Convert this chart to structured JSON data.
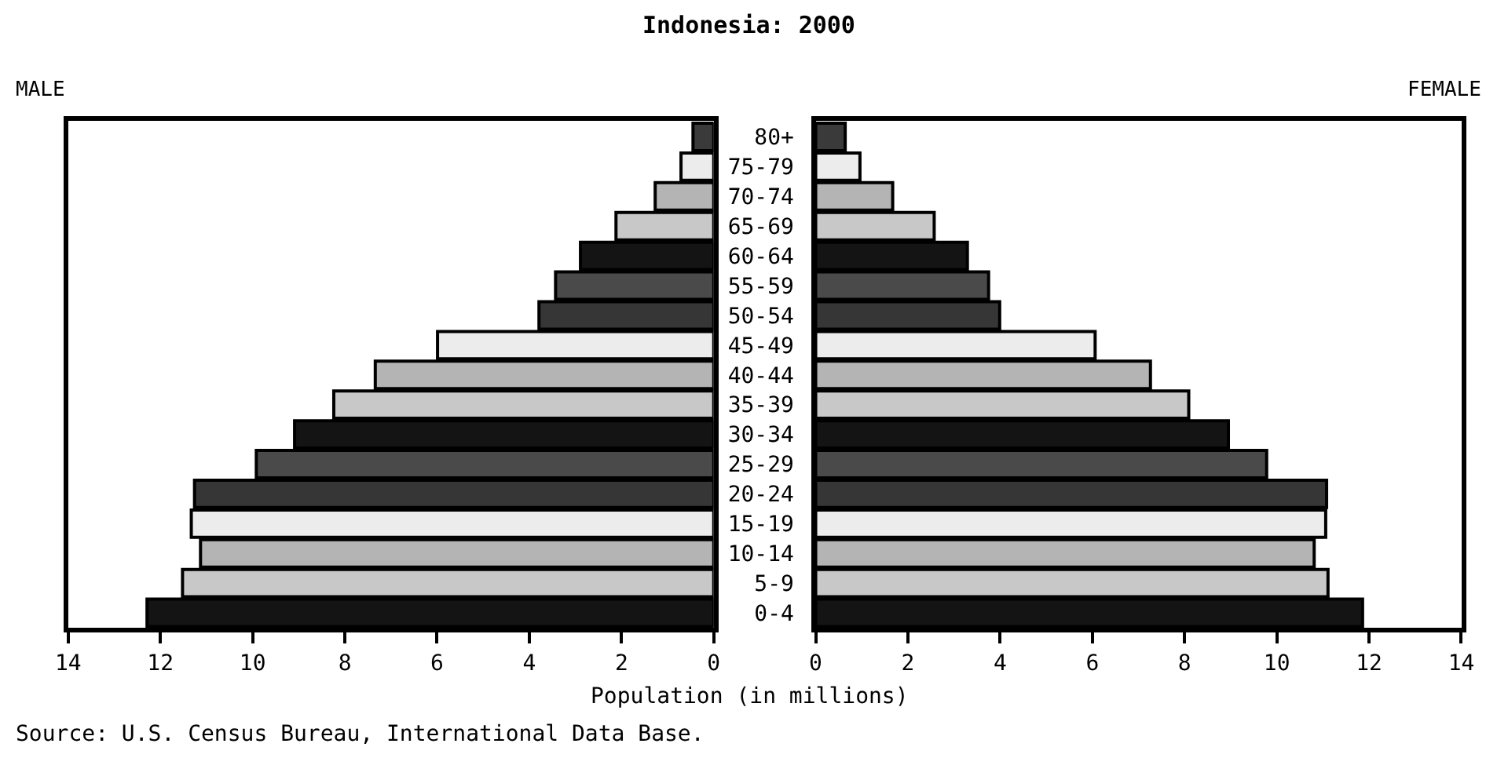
{
  "chart_data": [
    {
      "type": "bar",
      "orientation": "horizontal",
      "title": "Indonesia: 2000",
      "xlabel": "Population (in millions)",
      "annotations": [
        "Source: U.S. Census Bureau, International Data Base."
      ],
      "categories": [
        null,
        null,
        null,
        null,
        null,
        null,
        null,
        null,
        null,
        null,
        null,
        null,
        null,
        null,
        null,
        null,
        null
      ],
      "series": [
        {
          "name": "MALE",
          "colors": [
            "#3a3a3a",
            "#ececec",
            "#b4b4b4",
            "#c8c8c8",
            "#141414",
            "#4a4a4a",
            "#363636",
            "#ececec",
            "#b4b4b4",
            "#c8c8c8",
            "#141414",
            "#4a4a4a",
            "#363636",
            "#ececec",
            "#b4b4b4",
            "#c8c8c8",
            "#141414"
          ],
          "values": [
            0.45,
            0.71,
            1.27,
            2.12,
            2.89,
            3.43,
            3.79,
            5.99,
            7.34,
            8.24,
            9.09,
            9.92,
            11.26,
            11.33,
            11.13,
            11.52,
            12.29
          ]
        }
      ],
      "xlim": [
        14,
        0
      ],
      "xticks": [
        14,
        12,
        10,
        8,
        6,
        4,
        2,
        0
      ],
      "tick_labels": "x",
      "legend": false
    },
    {
      "type": "bar",
      "orientation": "horizontal",
      "categories": [
        "80+",
        "75-79",
        "70-74",
        "65-69",
        "60-64",
        "55-59",
        "50-54",
        "45-49",
        "40-44",
        "35-39",
        "30-34",
        "25-29",
        "20-24",
        "15-19",
        "10-14",
        "5-9",
        "0-4"
      ],
      "series": [
        {
          "name": "FEMALE",
          "colors": [
            "#3a3a3a",
            "#ececec",
            "#b4b4b4",
            "#c8c8c8",
            "#141414",
            "#4a4a4a",
            "#363636",
            "#ececec",
            "#b4b4b4",
            "#c8c8c8",
            "#141414",
            "#4a4a4a",
            "#363636",
            "#ececec",
            "#b4b4b4",
            "#c8c8c8",
            "#141414"
          ],
          "values": [
            0.64,
            0.96,
            1.67,
            2.57,
            3.29,
            3.75,
            3.99,
            6.06,
            7.26,
            8.09,
            8.95,
            9.78,
            11.08,
            11.06,
            10.81,
            11.11,
            11.86
          ]
        }
      ],
      "xlim": [
        0,
        14
      ],
      "xticks": [
        0,
        2,
        4,
        6,
        8,
        10,
        12,
        14
      ],
      "legend": false
    }
  ]
}
